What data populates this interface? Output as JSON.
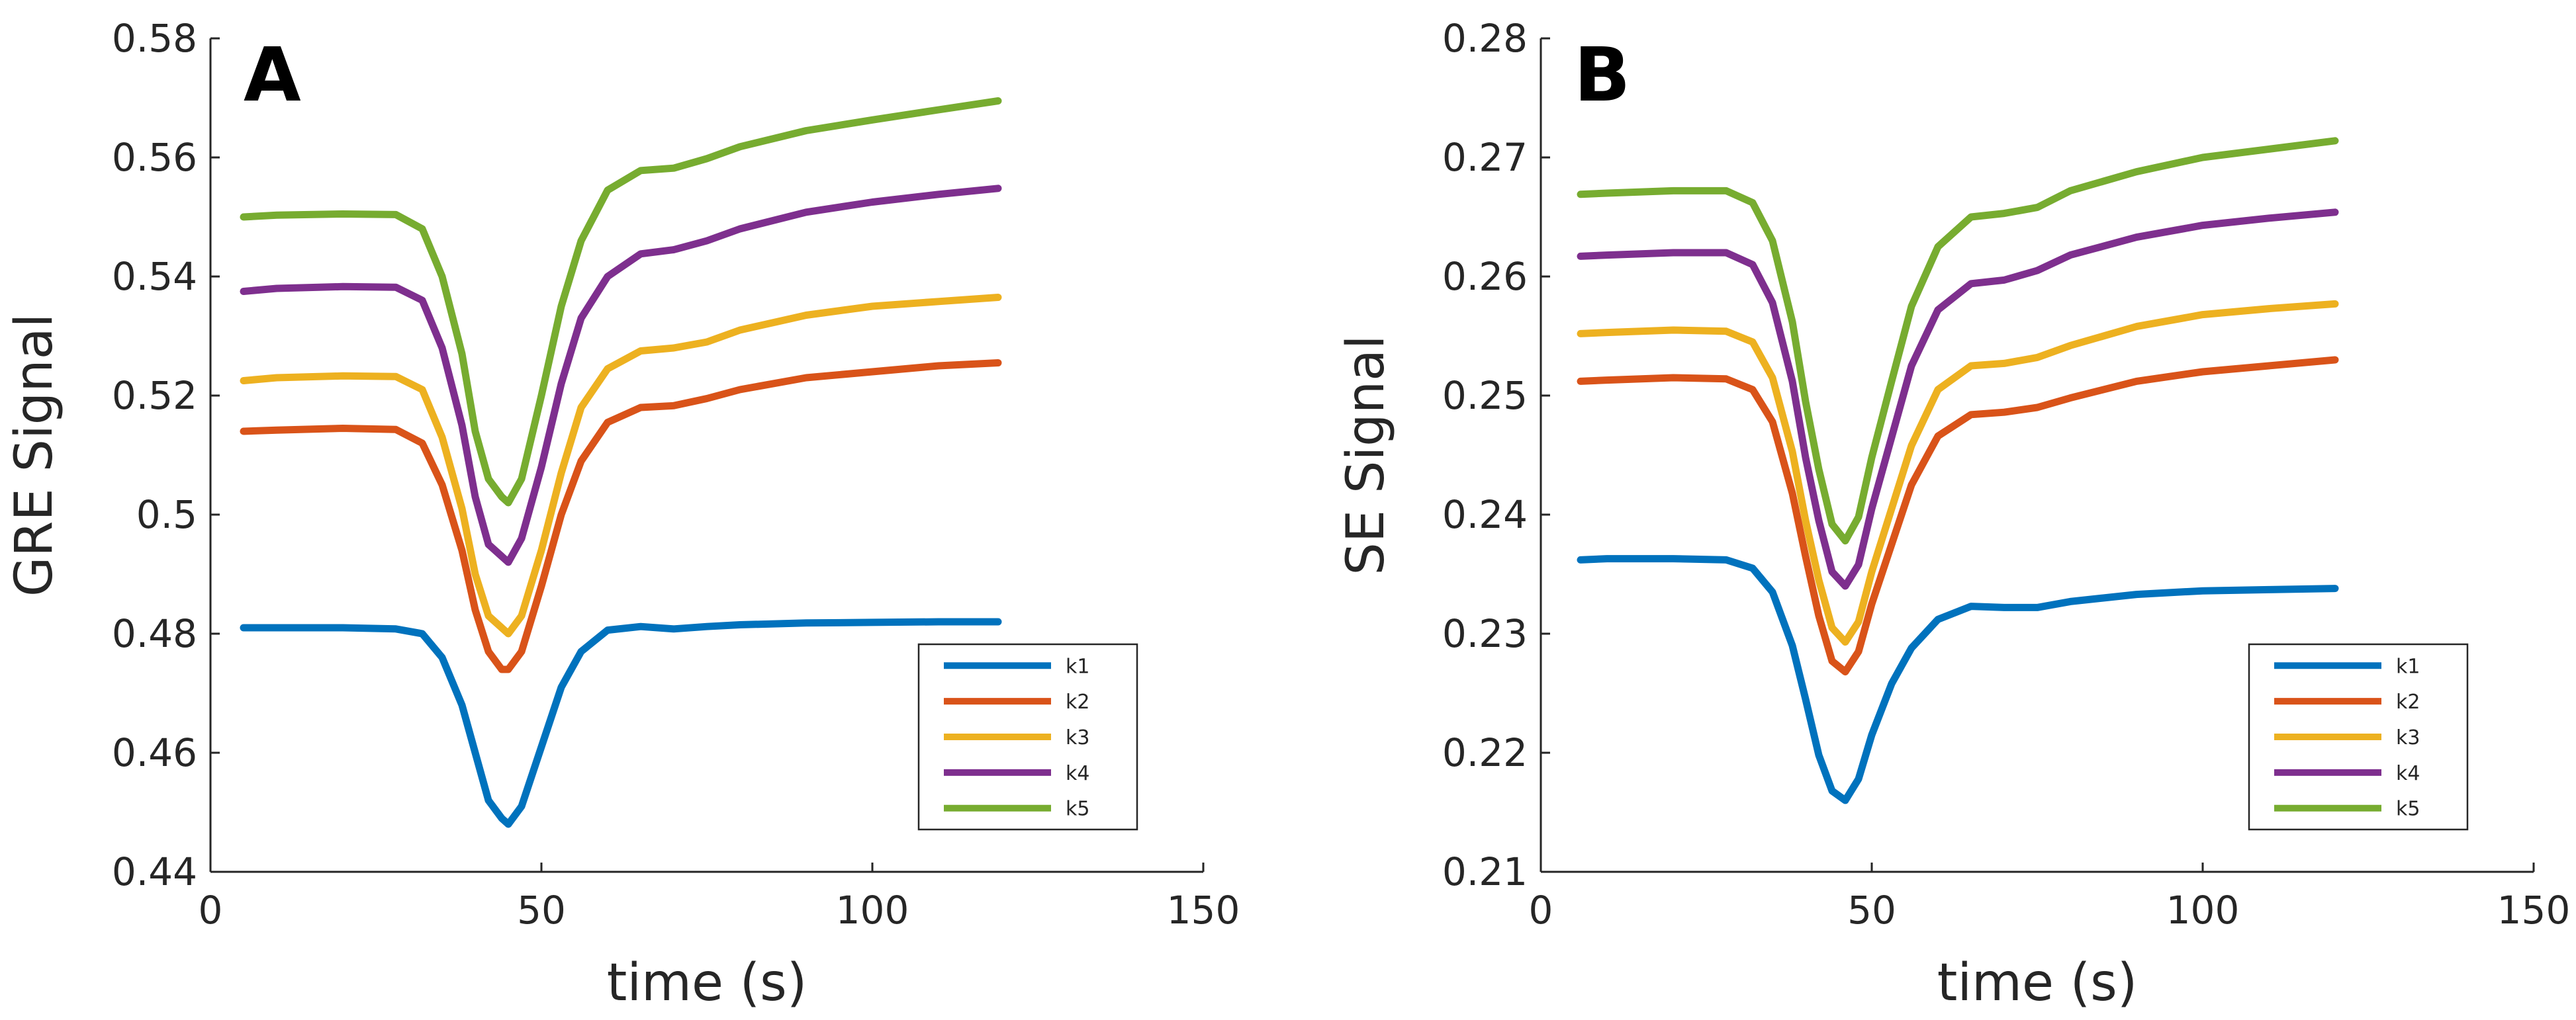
{
  "chart_data": [
    {
      "type": "line",
      "panel_label": "A",
      "xlabel": "time (s)",
      "ylabel": "GRE Signal",
      "xlim": [
        0,
        150
      ],
      "ylim": [
        0.44,
        0.58
      ],
      "xticks": [
        "0",
        "50",
        "100",
        "150"
      ],
      "yticks": [
        "0.44",
        "0.46",
        "0.48",
        "0.5",
        "0.52",
        "0.54",
        "0.56",
        "0.58"
      ],
      "grid": false,
      "legend_position": "bottom-right",
      "x": [
        5,
        10,
        20,
        28,
        32,
        35,
        38,
        40,
        42,
        44,
        45,
        47,
        50,
        53,
        56,
        60,
        65,
        70,
        75,
        80,
        90,
        100,
        110,
        119
      ],
      "series": [
        {
          "name": "k1",
          "color": "#0072BD",
          "values": [
            0.481,
            0.481,
            0.481,
            0.4808,
            0.48,
            0.476,
            0.468,
            0.46,
            0.452,
            0.449,
            0.448,
            0.451,
            0.461,
            0.471,
            0.477,
            0.4806,
            0.4812,
            0.4808,
            0.4812,
            0.4815,
            0.4818,
            0.4819,
            0.482,
            0.482
          ]
        },
        {
          "name": "k2",
          "color": "#D95319",
          "values": [
            0.514,
            0.5142,
            0.5145,
            0.5143,
            0.512,
            0.505,
            0.494,
            0.484,
            0.477,
            0.474,
            0.474,
            0.477,
            0.488,
            0.5,
            0.509,
            0.5155,
            0.518,
            0.5183,
            0.5195,
            0.521,
            0.523,
            0.524,
            0.525,
            0.5255
          ]
        },
        {
          "name": "k3",
          "color": "#EDB120",
          "values": [
            0.5225,
            0.523,
            0.5233,
            0.5232,
            0.521,
            0.513,
            0.501,
            0.49,
            0.483,
            0.481,
            0.48,
            0.483,
            0.494,
            0.507,
            0.518,
            0.5245,
            0.5275,
            0.528,
            0.529,
            0.531,
            0.5335,
            0.535,
            0.5358,
            0.5365
          ]
        },
        {
          "name": "k4",
          "color": "#7E2F8E",
          "values": [
            0.5375,
            0.538,
            0.5383,
            0.5382,
            0.536,
            0.528,
            0.515,
            0.503,
            0.495,
            0.493,
            0.492,
            0.496,
            0.508,
            0.522,
            0.533,
            0.54,
            0.5438,
            0.5445,
            0.546,
            0.548,
            0.5508,
            0.5525,
            0.5538,
            0.5548
          ]
        },
        {
          "name": "k5",
          "color": "#77AC30",
          "values": [
            0.55,
            0.5503,
            0.5505,
            0.5504,
            0.548,
            0.54,
            0.527,
            0.514,
            0.506,
            0.503,
            0.502,
            0.506,
            0.52,
            0.535,
            0.546,
            0.5545,
            0.5578,
            0.5582,
            0.5598,
            0.5618,
            0.5645,
            0.5663,
            0.568,
            0.5695
          ]
        }
      ]
    },
    {
      "type": "line",
      "panel_label": "B",
      "xlabel": "time (s)",
      "ylabel": "SE Signal",
      "xlim": [
        0,
        150
      ],
      "ylim": [
        0.21,
        0.28
      ],
      "xticks": [
        "0",
        "50",
        "100",
        "150"
      ],
      "yticks": [
        "0.21",
        "0.22",
        "0.23",
        "0.24",
        "0.25",
        "0.26",
        "0.27",
        "0.28"
      ],
      "grid": false,
      "legend_position": "bottom-right",
      "x": [
        6,
        10,
        20,
        28,
        32,
        35,
        38,
        40,
        42,
        44,
        46,
        48,
        50,
        53,
        56,
        60,
        65,
        70,
        75,
        80,
        90,
        100,
        110,
        120
      ],
      "series": [
        {
          "name": "k1",
          "color": "#0072BD",
          "values": [
            0.2362,
            0.2363,
            0.2363,
            0.2362,
            0.2355,
            0.2335,
            0.229,
            0.2245,
            0.2198,
            0.2168,
            0.216,
            0.2178,
            0.2215,
            0.2258,
            0.2288,
            0.2312,
            0.2323,
            0.2322,
            0.2322,
            0.2327,
            0.2333,
            0.2336,
            0.2337,
            0.2338
          ]
        },
        {
          "name": "k2",
          "color": "#D95319",
          "values": [
            0.2512,
            0.2513,
            0.2515,
            0.2514,
            0.2505,
            0.2478,
            0.2418,
            0.2365,
            0.2315,
            0.2277,
            0.2268,
            0.2285,
            0.2325,
            0.2375,
            0.2425,
            0.2466,
            0.2484,
            0.2486,
            0.249,
            0.2498,
            0.2512,
            0.252,
            0.2525,
            0.253
          ]
        },
        {
          "name": "k3",
          "color": "#EDB120",
          "values": [
            0.2552,
            0.2553,
            0.2555,
            0.2554,
            0.2545,
            0.2515,
            0.2453,
            0.2395,
            0.2345,
            0.2305,
            0.2293,
            0.231,
            0.2352,
            0.2405,
            0.2458,
            0.2505,
            0.2525,
            0.2527,
            0.2532,
            0.2542,
            0.2558,
            0.2568,
            0.2573,
            0.2577
          ]
        },
        {
          "name": "k4",
          "color": "#7E2F8E",
          "values": [
            0.2617,
            0.2618,
            0.262,
            0.262,
            0.261,
            0.2578,
            0.2512,
            0.2448,
            0.2395,
            0.2352,
            0.234,
            0.2358,
            0.2405,
            0.2465,
            0.2525,
            0.2572,
            0.2594,
            0.2597,
            0.2605,
            0.2618,
            0.2633,
            0.2643,
            0.2649,
            0.2654
          ]
        },
        {
          "name": "k5",
          "color": "#77AC30",
          "values": [
            0.2669,
            0.267,
            0.2672,
            0.2672,
            0.2662,
            0.263,
            0.2562,
            0.2495,
            0.2438,
            0.2392,
            0.2378,
            0.2398,
            0.2448,
            0.2512,
            0.2575,
            0.2625,
            0.265,
            0.2653,
            0.2658,
            0.2672,
            0.2688,
            0.27,
            0.2707,
            0.2714
          ]
        }
      ]
    }
  ]
}
